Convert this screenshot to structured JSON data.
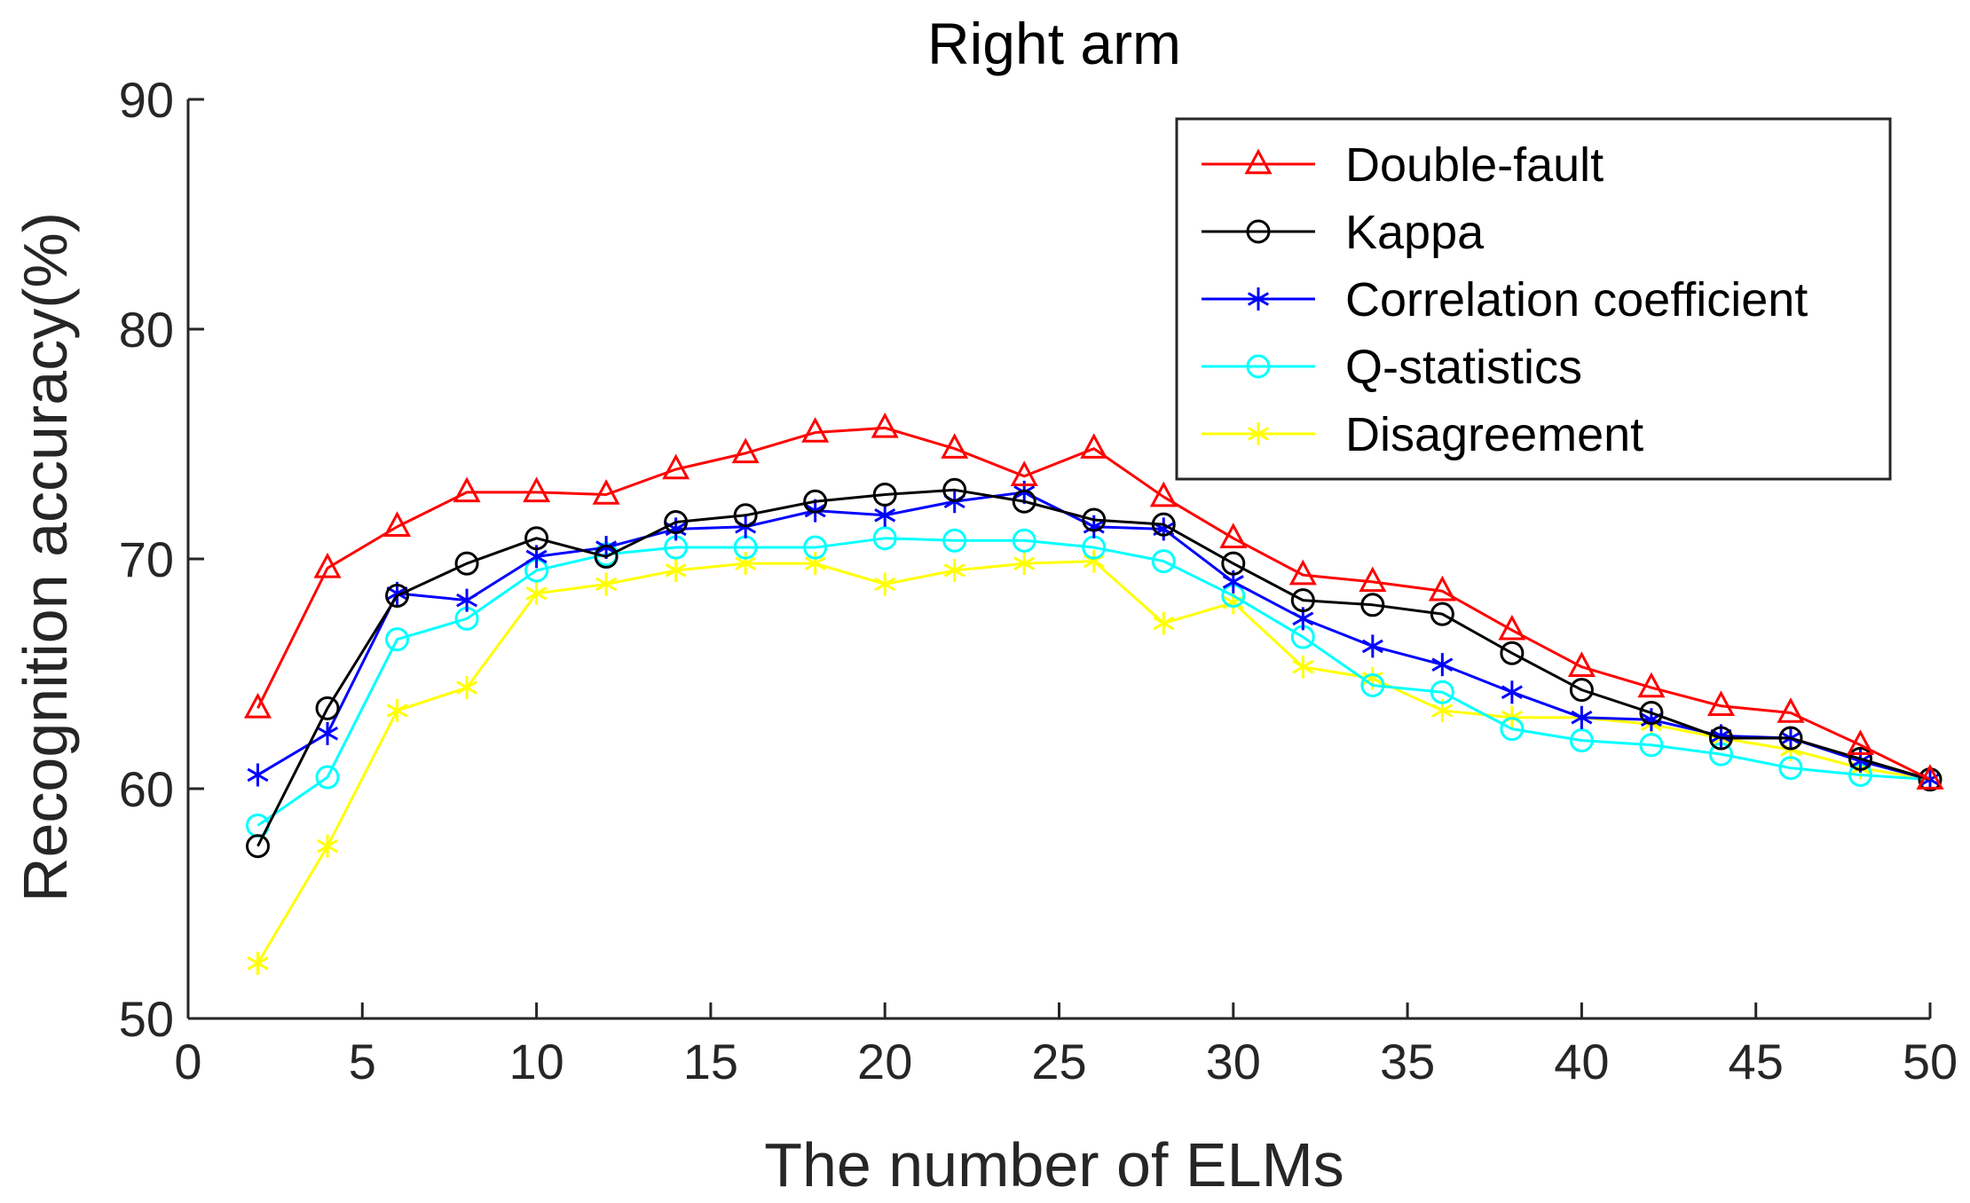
{
  "chart_data": {
    "type": "line",
    "title": "Right arm",
    "xlabel": "The number of ELMs",
    "ylabel": "Recognition accuracy(%)",
    "xlim": [
      0,
      50
    ],
    "ylim": [
      50,
      90
    ],
    "xticks": [
      0,
      5,
      10,
      15,
      20,
      25,
      30,
      35,
      40,
      45,
      50
    ],
    "yticks": [
      50,
      60,
      70,
      80,
      90
    ],
    "grid": false,
    "legend_position": "top-right",
    "x": [
      2,
      4,
      6,
      8,
      10,
      12,
      14,
      16,
      18,
      20,
      22,
      24,
      26,
      28,
      30,
      32,
      34,
      36,
      38,
      40,
      42,
      44,
      46,
      48,
      50
    ],
    "series": [
      {
        "name": "Double-fault",
        "color": "#ff0000",
        "marker": "triangle",
        "values": [
          63.5,
          69.6,
          71.4,
          72.9,
          72.9,
          72.8,
          73.9,
          74.6,
          75.5,
          75.7,
          74.8,
          73.6,
          74.8,
          72.7,
          70.9,
          69.3,
          69.0,
          68.6,
          66.9,
          65.3,
          64.4,
          63.6,
          63.3,
          61.9,
          60.4
        ]
      },
      {
        "name": "Kappa",
        "color": "#000000",
        "marker": "circle",
        "values": [
          57.5,
          63.5,
          68.4,
          69.8,
          70.9,
          70.1,
          71.6,
          71.9,
          72.5,
          72.8,
          73.0,
          72.5,
          71.7,
          71.5,
          69.8,
          68.2,
          68.0,
          67.6,
          65.9,
          64.3,
          63.3,
          62.2,
          62.2,
          61.3,
          60.4
        ]
      },
      {
        "name": "Correlation coefficient",
        "color": "#0000ff",
        "marker": "asterisk",
        "values": [
          60.6,
          62.4,
          68.5,
          68.2,
          70.1,
          70.5,
          71.3,
          71.4,
          72.1,
          71.9,
          72.5,
          72.9,
          71.4,
          71.3,
          69.0,
          67.4,
          66.2,
          65.4,
          64.2,
          63.1,
          63.0,
          62.3,
          62.2,
          61.2,
          60.4
        ]
      },
      {
        "name": "Q-statistics",
        "color": "#00ffff",
        "marker": "circle",
        "values": [
          58.4,
          60.5,
          66.5,
          67.4,
          69.5,
          70.2,
          70.5,
          70.5,
          70.5,
          70.9,
          70.8,
          70.8,
          70.5,
          69.9,
          68.4,
          66.6,
          64.5,
          64.2,
          62.6,
          62.1,
          61.9,
          61.5,
          60.9,
          60.6,
          60.4
        ]
      },
      {
        "name": "Disagreement",
        "color": "#ffff00",
        "marker": "asterisk",
        "values": [
          52.4,
          57.5,
          63.4,
          64.4,
          68.5,
          68.9,
          69.5,
          69.8,
          69.8,
          68.9,
          69.5,
          69.8,
          69.9,
          67.2,
          68.1,
          65.3,
          64.8,
          63.4,
          63.1,
          63.1,
          62.8,
          62.2,
          61.7,
          60.9,
          60.4
        ]
      }
    ]
  }
}
